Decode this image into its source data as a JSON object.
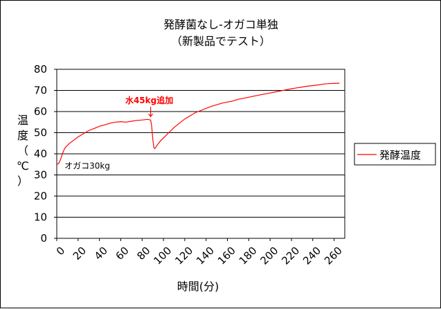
{
  "chart_data": {
    "type": "line",
    "title": "発酵菌なし-オガコ単独",
    "subtitle": "（新製品でテスト）",
    "xlabel": "時間(分)",
    "ylabel": "温度（℃）",
    "xlim": [
      0,
      270
    ],
    "ylim": [
      0,
      80
    ],
    "x_ticks": [
      "0",
      "20",
      "40",
      "60",
      "80",
      "100",
      "120",
      "140",
      "160",
      "180",
      "200",
      "220",
      "240",
      "260"
    ],
    "y_ticks": [
      "0",
      "10",
      "20",
      "30",
      "40",
      "50",
      "60",
      "70",
      "80"
    ],
    "grid": "horizontal",
    "legend": "right",
    "series": [
      {
        "name": "発酵温度",
        "color": "#ff0000",
        "points": [
          [
            0,
            35
          ],
          [
            2,
            35.5
          ],
          [
            4,
            38
          ],
          [
            6,
            41
          ],
          [
            8,
            43
          ],
          [
            12,
            45
          ],
          [
            16,
            46.5
          ],
          [
            20,
            48
          ],
          [
            25,
            49.5
          ],
          [
            30,
            51
          ],
          [
            35,
            52
          ],
          [
            40,
            53
          ],
          [
            45,
            53.7
          ],
          [
            50,
            54.5
          ],
          [
            55,
            55
          ],
          [
            60,
            55.2
          ],
          [
            65,
            55
          ],
          [
            70,
            55.4
          ],
          [
            75,
            55.8
          ],
          [
            80,
            56
          ],
          [
            85,
            56.3
          ],
          [
            88,
            56
          ],
          [
            89,
            53
          ],
          [
            90,
            47
          ],
          [
            91,
            43
          ],
          [
            92,
            42.5
          ],
          [
            94,
            44
          ],
          [
            97,
            46
          ],
          [
            100,
            47.5
          ],
          [
            105,
            50
          ],
          [
            110,
            52.5
          ],
          [
            115,
            54.5
          ],
          [
            120,
            56.5
          ],
          [
            125,
            58
          ],
          [
            130,
            59.5
          ],
          [
            135,
            60.5
          ],
          [
            140,
            61.5
          ],
          [
            145,
            62.5
          ],
          [
            150,
            63.2
          ],
          [
            155,
            64
          ],
          [
            160,
            64.5
          ],
          [
            165,
            65
          ],
          [
            170,
            65.8
          ],
          [
            175,
            66.3
          ],
          [
            180,
            66.8
          ],
          [
            185,
            67.3
          ],
          [
            190,
            67.8
          ],
          [
            195,
            68.3
          ],
          [
            200,
            68.8
          ],
          [
            205,
            69.3
          ],
          [
            210,
            69.8
          ],
          [
            215,
            70.3
          ],
          [
            220,
            70.8
          ],
          [
            225,
            71.2
          ],
          [
            230,
            71.6
          ],
          [
            235,
            72
          ],
          [
            240,
            72.3
          ],
          [
            245,
            72.6
          ],
          [
            250,
            73
          ],
          [
            255,
            73.2
          ],
          [
            260,
            73.3
          ],
          [
            265,
            73.4
          ]
        ]
      }
    ],
    "annotations": [
      {
        "text": "水45kg追加",
        "color": "#ff0000",
        "x": 88,
        "y": 56
      },
      {
        "text": "オガコ30kg",
        "color": "#000000",
        "x": 2,
        "y": 35
      }
    ]
  }
}
